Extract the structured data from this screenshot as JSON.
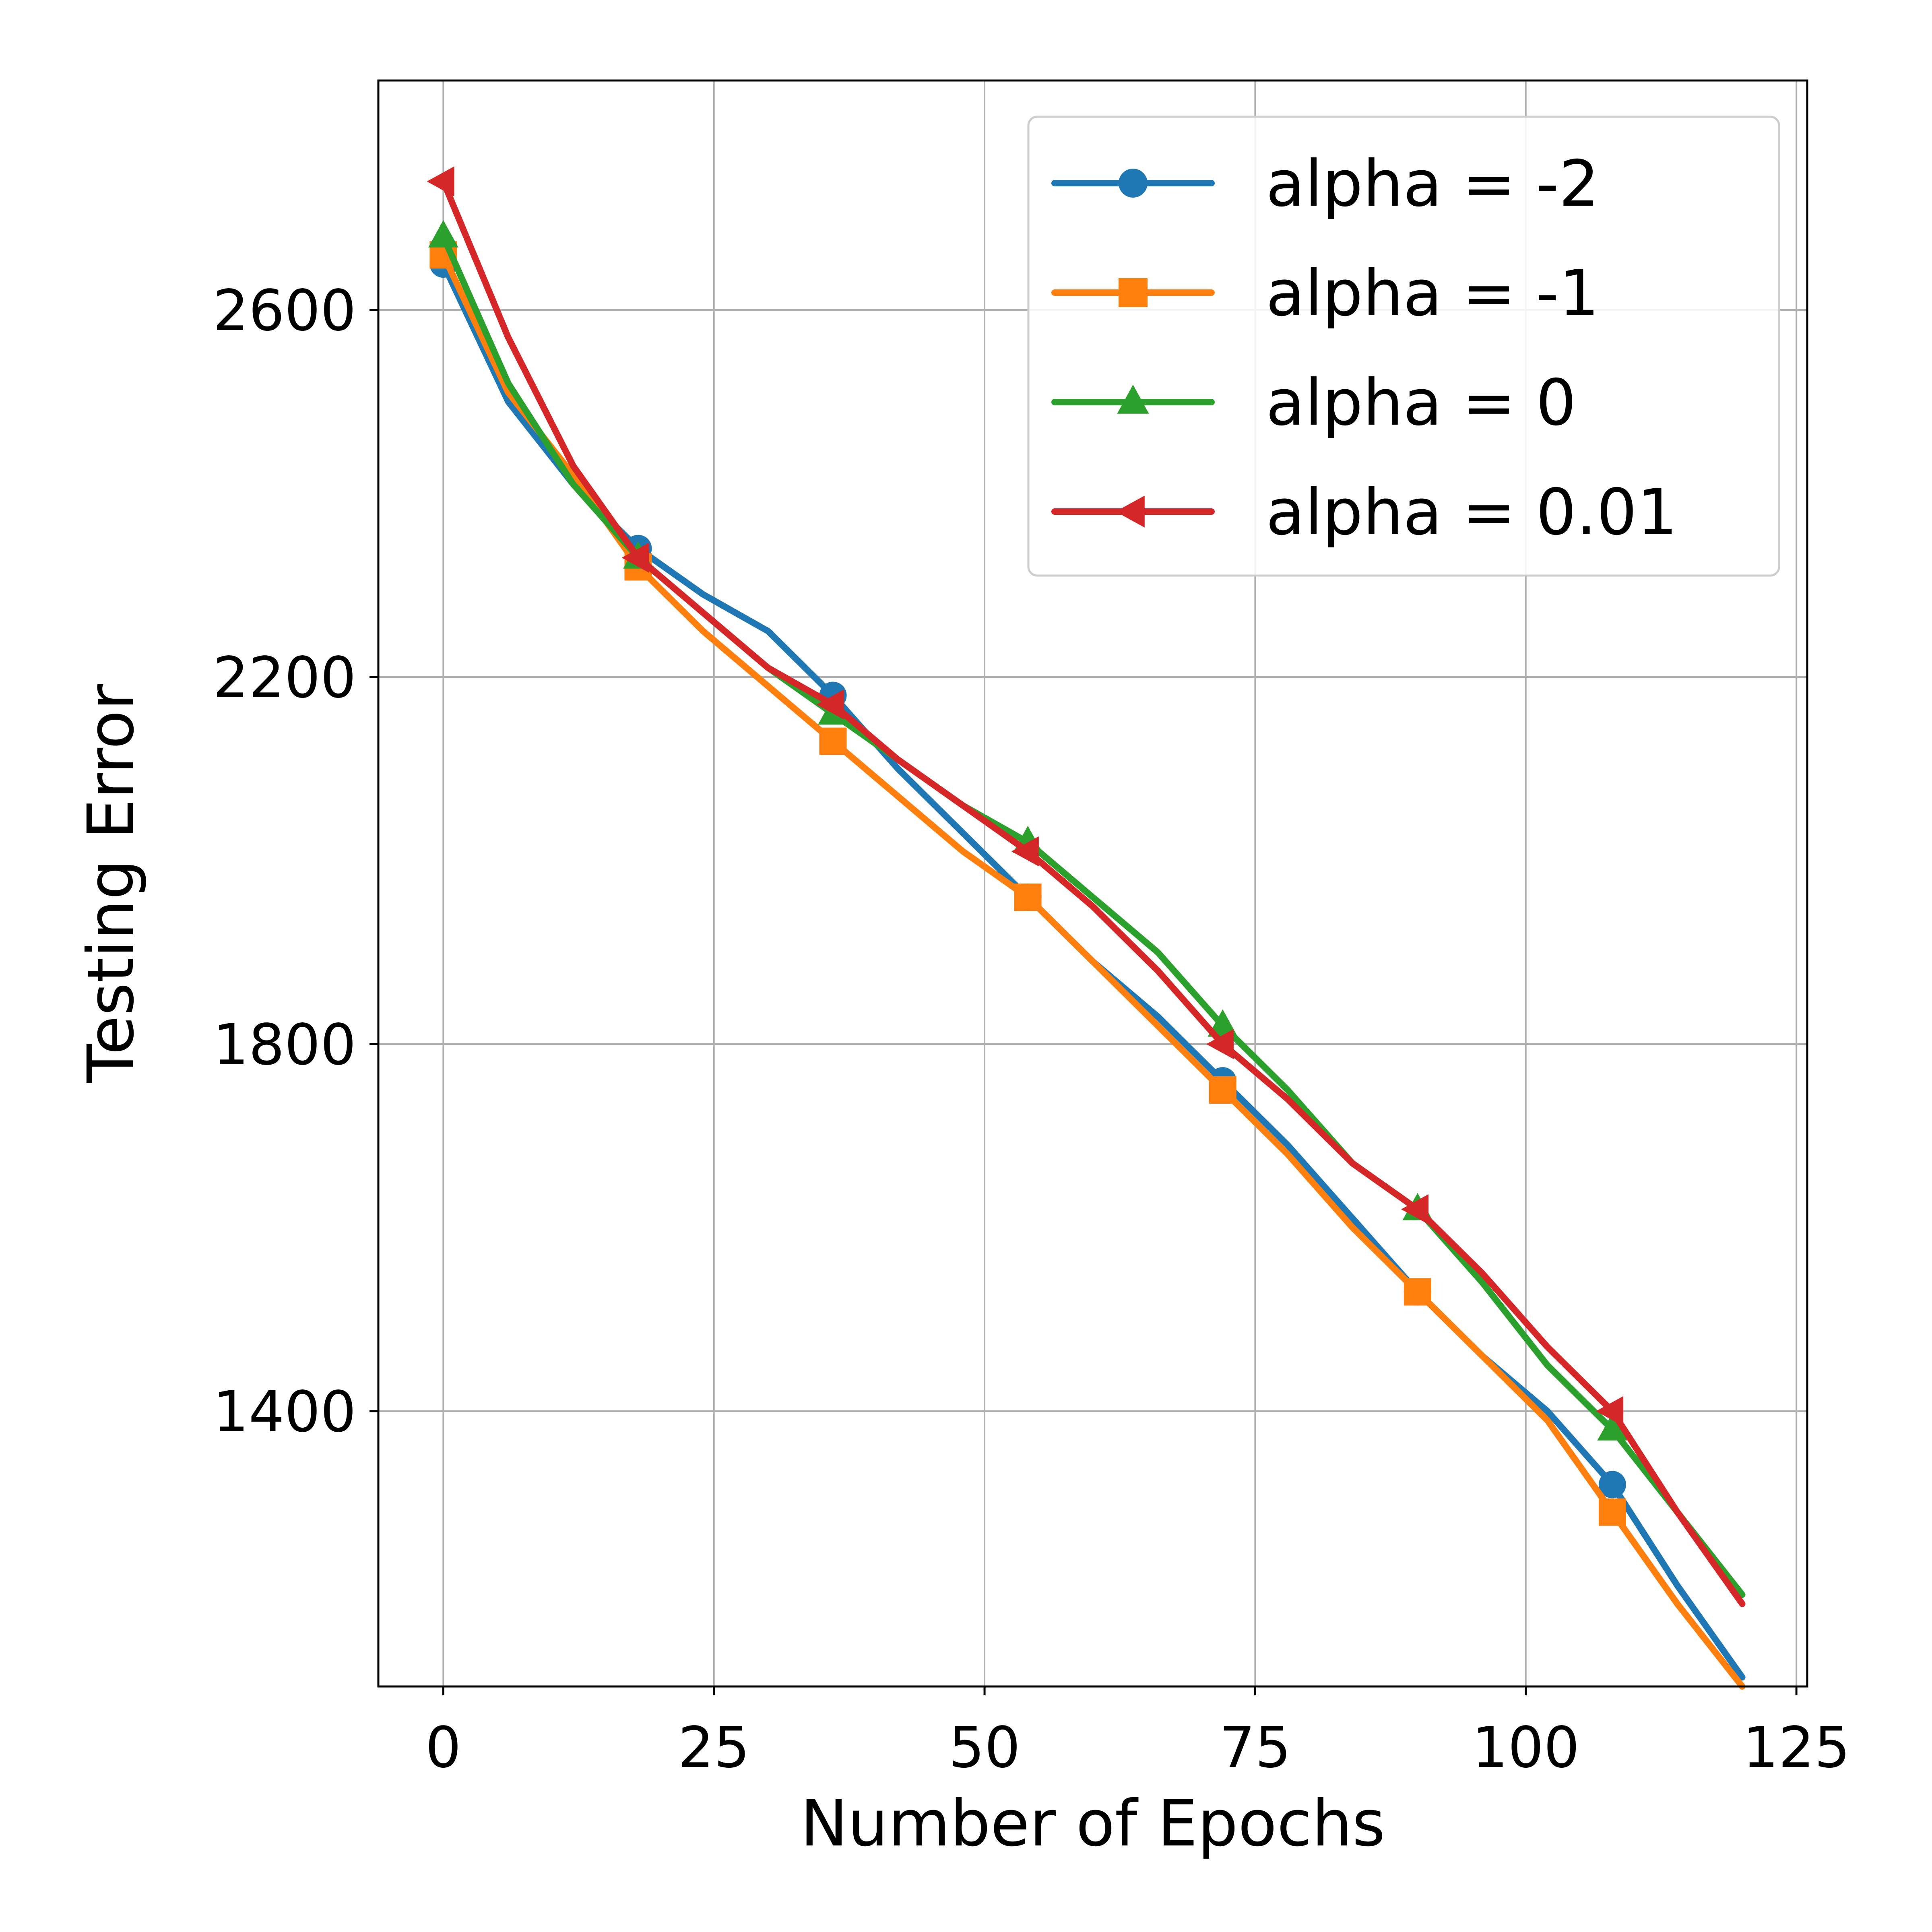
{
  "chart_data": {
    "type": "line",
    "xlabel": "Number of Epochs",
    "ylabel": "Testing Error",
    "xlim": [
      -6,
      126
    ],
    "ylim": [
      1100,
      2850
    ],
    "xticks": [
      0,
      25,
      50,
      75,
      100,
      125
    ],
    "yticks": [
      1400,
      1800,
      2200,
      2600
    ],
    "grid": true,
    "legend_position": "top-right",
    "x": [
      0,
      6,
      12,
      18,
      24,
      30,
      36,
      42,
      48,
      54,
      60,
      66,
      72,
      78,
      84,
      90,
      96,
      102,
      108,
      114,
      120
    ],
    "series": [
      {
        "name": "alpha = -2",
        "color": "#1f77b4",
        "marker": "circle",
        "values": [
          2650,
          2500,
          2410,
          2340,
          2290,
          2250,
          2180,
          2100,
          2030,
          1960,
          1890,
          1830,
          1760,
          1690,
          1610,
          1530,
          1460,
          1400,
          1320,
          1210,
          1110
        ]
      },
      {
        "name": "alpha = -1",
        "color": "#ff7f0e",
        "marker": "square",
        "values": [
          2660,
          2510,
          2420,
          2320,
          2250,
          2190,
          2130,
          2070,
          2010,
          1960,
          1890,
          1820,
          1750,
          1680,
          1600,
          1530,
          1460,
          1390,
          1290,
          1190,
          1100
        ]
      },
      {
        "name": "alpha = 0",
        "color": "#2ca02c",
        "marker": "triangle-up",
        "values": [
          2680,
          2520,
          2410,
          2330,
          2270,
          2210,
          2160,
          2110,
          2060,
          2020,
          1960,
          1900,
          1820,
          1750,
          1670,
          1620,
          1540,
          1450,
          1380,
          1290,
          1200
        ]
      },
      {
        "name": "alpha = 0.01",
        "color": "#d62728",
        "marker": "triangle-left",
        "values": [
          2740,
          2570,
          2430,
          2330,
          2270,
          2210,
          2170,
          2110,
          2060,
          2010,
          1950,
          1880,
          1800,
          1740,
          1670,
          1620,
          1550,
          1470,
          1400,
          1290,
          1190
        ]
      }
    ],
    "marker_indices": [
      0,
      3,
      6,
      9,
      12,
      15,
      18
    ]
  }
}
